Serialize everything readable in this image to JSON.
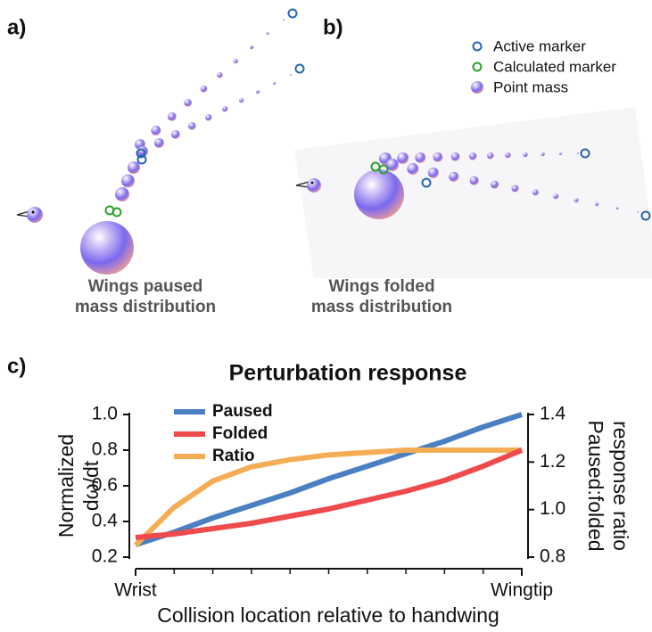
{
  "panels": [
    {
      "label": "a)",
      "caption": [
        "Wings paused",
        "mass distribution"
      ]
    },
    {
      "label": "b)",
      "caption": [
        "Wings folded",
        "mass distribution"
      ],
      "legend": [
        "Active marker",
        "Calculated marker",
        "Point mass"
      ]
    },
    {
      "label": "c)"
    }
  ],
  "chart_data": {
    "type": "line",
    "title": "Perturbation response",
    "xlabel": "Collision location relative to handwing",
    "ylabel": [
      "Normalized",
      "dω/dt"
    ],
    "y2label": [
      "Paused:folded",
      "response ratio"
    ],
    "x": [
      0,
      0.1,
      0.2,
      0.3,
      0.4,
      0.5,
      0.6,
      0.7,
      0.8,
      0.9,
      1
    ],
    "xlim": [
      0,
      1
    ],
    "xticks": [
      {
        "value": 0,
        "label": "Wrist"
      },
      {
        "value": 1,
        "label": "Wingtip"
      }
    ],
    "xminorticks": [
      0.1,
      0.2,
      0.3,
      0.4,
      0.5,
      0.6,
      0.7,
      0.8,
      0.9
    ],
    "ylim": [
      0.2,
      1
    ],
    "yticks": [
      0.2,
      0.4,
      0.6,
      0.8,
      {
        "value": 1,
        "label": "1.0"
      }
    ],
    "y2lim": [
      0.8,
      1.4
    ],
    "y2ticks": [
      0.8,
      {
        "value": 1,
        "label": "1.0"
      },
      1.2,
      1.4
    ],
    "series": [
      {
        "name": "Paused",
        "color": "#4a7fc1",
        "values": [
          0.27,
          0.34,
          0.42,
          0.49,
          0.56,
          0.64,
          0.71,
          0.78,
          0.85,
          0.93,
          1
        ]
      },
      {
        "name": "Folded",
        "color": "#ef4a4c",
        "values": [
          0.31,
          0.33,
          0.36,
          0.39,
          0.43,
          0.47,
          0.52,
          0.57,
          0.63,
          0.71,
          0.8
        ]
      },
      {
        "name": "Ratio",
        "color": "#f5ad55",
        "axis": "y2",
        "values": [
          0.85,
          1.01,
          1.12,
          1.18,
          1.21,
          1.23,
          1.24,
          1.25,
          1.25,
          1.25,
          1.25
        ]
      }
    ]
  }
}
